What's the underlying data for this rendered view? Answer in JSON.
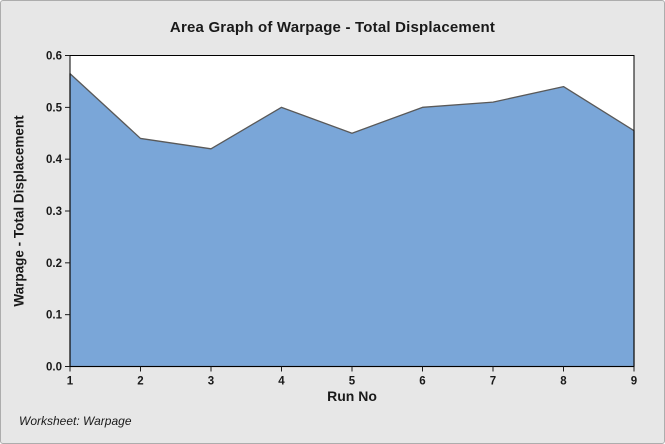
{
  "window": {
    "background": "#E7E7E7",
    "border_color": "#ADADAD"
  },
  "chart_data": {
    "type": "area",
    "title": "Area Graph of Warpage - Total Displacement",
    "xlabel": "Run No",
    "ylabel": "Warpage - Total Displacement",
    "categories": [
      1,
      2,
      3,
      4,
      5,
      6,
      7,
      8,
      9
    ],
    "values": [
      0.565,
      0.44,
      0.42,
      0.5,
      0.45,
      0.5,
      0.51,
      0.54,
      0.455
    ],
    "xlim": [
      1,
      9
    ],
    "ylim": [
      0,
      0.6
    ],
    "x_tick_labels": [
      "1",
      "2",
      "3",
      "4",
      "5",
      "6",
      "7",
      "8",
      "9"
    ],
    "y_tick_labels": [
      "0.0",
      "0.1",
      "0.2",
      "0.3",
      "0.4",
      "0.5",
      "0.6"
    ],
    "grid": false,
    "legend": "none",
    "fill_color": "#7AA6D8",
    "line_color": "#595959",
    "plot_background": "#FFFFFF",
    "frame_color": "#000000",
    "tick_color": "#1A1A1A"
  },
  "footer": {
    "worksheet_label": "Worksheet: Warpage"
  }
}
